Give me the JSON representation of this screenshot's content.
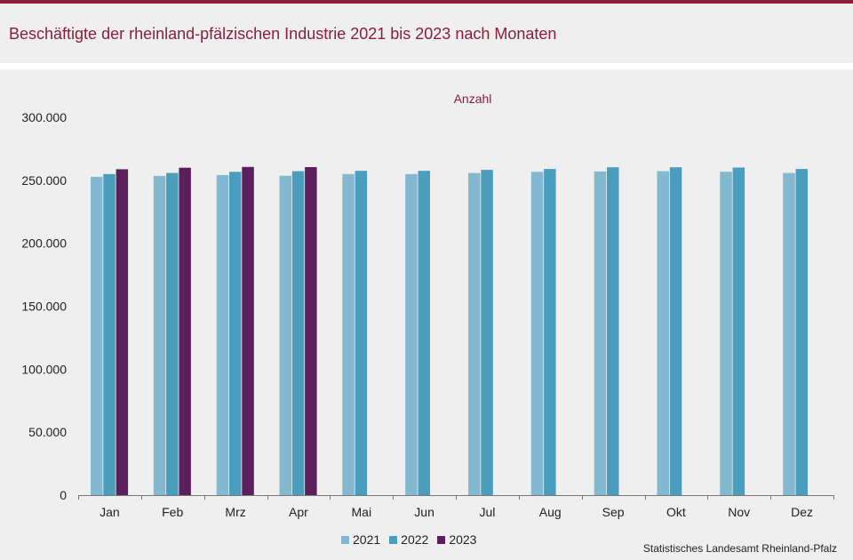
{
  "header": {
    "title": "Beschäftigte der rheinland-pfälzischen Industrie 2021 bis 2023 nach Monaten"
  },
  "source": "Statistisches Landesamt  Rheinland-Pfalz",
  "colors": {
    "accent": "#8b1d3b",
    "series_2021": "#82b8d0",
    "series_2022": "#4b9dbd",
    "series_2023": "#5b1f5c"
  },
  "chart_data": {
    "type": "bar",
    "title": "",
    "unit_label": "Anzahl",
    "xlabel": "",
    "ylabel": "",
    "ylim": [
      0,
      300000
    ],
    "yticks": [
      0,
      50000,
      100000,
      150000,
      200000,
      250000,
      300000
    ],
    "ytick_labels": [
      "0",
      "50.000",
      "100.000",
      "150.000",
      "200.000",
      "250.000",
      "300.000"
    ],
    "grid": false,
    "legend_position": "bottom",
    "categories": [
      "Jan",
      "Feb",
      "Mrz",
      "Apr",
      "Mai",
      "Jun",
      "Jul",
      "Aug",
      "Sep",
      "Okt",
      "Nov",
      "Dez"
    ],
    "series": [
      {
        "name": "2021",
        "color": "#82b8d0",
        "values": [
          252800,
          253500,
          254200,
          253600,
          255000,
          255000,
          255800,
          256700,
          257000,
          257200,
          256800,
          255800
        ]
      },
      {
        "name": "2022",
        "color": "#4b9dbd",
        "values": [
          255000,
          255800,
          256700,
          257200,
          257500,
          257500,
          258300,
          259000,
          260300,
          260300,
          260100,
          259000
        ]
      },
      {
        "name": "2023",
        "color": "#5b1f5c",
        "values": [
          258800,
          260000,
          260600,
          260500,
          null,
          null,
          null,
          null,
          null,
          null,
          null,
          null
        ]
      }
    ]
  }
}
